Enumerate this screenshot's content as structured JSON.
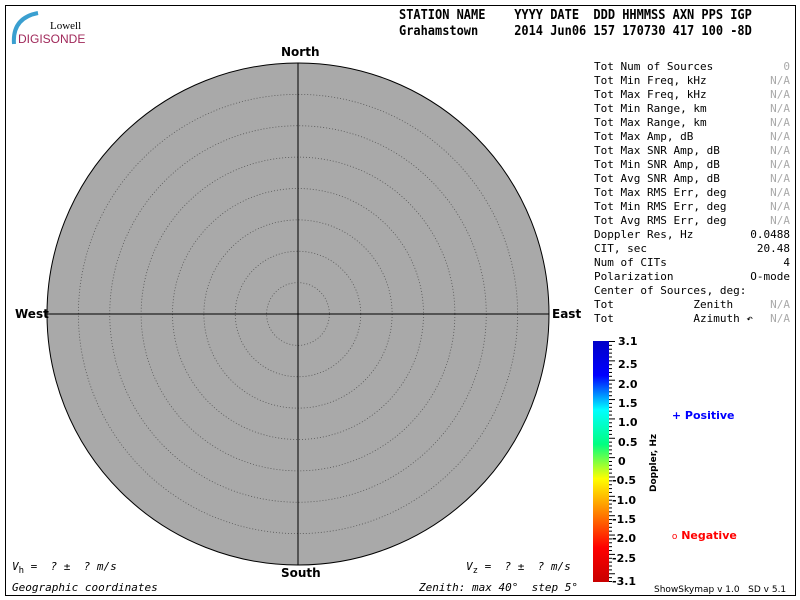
{
  "logo": {
    "line1": "Lowell",
    "line2": "DIGISONDE"
  },
  "header": {
    "labels": "STATION NAME    YYYY DATE  DDD HHMMSS AXN PPS IGP",
    "values": "Grahamstown     2014 Jun06 157 170730 417 100 -8D"
  },
  "directions": {
    "north": "North",
    "south": "South",
    "east": "East",
    "west": "West"
  },
  "plot": {
    "fill": "#a9a9a9",
    "zenith_max_deg": 40,
    "zenith_step_deg": 5
  },
  "stats": [
    {
      "label": "Tot Num of Sources",
      "value": "0",
      "muted": true
    },
    {
      "label": "Tot Min Freq, kHz",
      "value": "N/A",
      "muted": true
    },
    {
      "label": "Tot Max Freq, kHz",
      "value": "N/A",
      "muted": true
    },
    {
      "label": "Tot Min Range, km",
      "value": "N/A",
      "muted": true
    },
    {
      "label": "Tot Max Range, km",
      "value": "N/A",
      "muted": true
    },
    {
      "label": "Tot Max Amp, dB",
      "value": "N/A",
      "muted": true
    },
    {
      "label": "Tot Max SNR Amp, dB",
      "value": "N/A",
      "muted": true
    },
    {
      "label": "Tot Min SNR Amp, dB",
      "value": "N/A",
      "muted": true
    },
    {
      "label": "Tot Avg SNR Amp, dB",
      "value": "N/A",
      "muted": true
    },
    {
      "label": "Tot Max RMS Err, deg",
      "value": "N/A",
      "muted": true
    },
    {
      "label": "Tot Min RMS Err, deg",
      "value": "N/A",
      "muted": true
    },
    {
      "label": "Tot Avg RMS Err, deg",
      "value": "N/A",
      "muted": true
    },
    {
      "label": "Doppler Res, Hz",
      "value": "0.0488",
      "muted": false
    },
    {
      "label": "CIT, sec",
      "value": "20.48",
      "muted": false
    },
    {
      "label": "Num of CITs",
      "value": "4",
      "muted": false
    },
    {
      "label": "Polarization",
      "value": "O-mode",
      "muted": false
    },
    {
      "label": "Center of Sources, deg:",
      "value": "",
      "muted": false
    },
    {
      "label": "Tot            Zenith",
      "value": "N/A",
      "muted": true
    },
    {
      "label": "Tot            Azimuth ↶",
      "value": "N/A",
      "muted": true
    }
  ],
  "colorbar": {
    "title": "Doppler, Hz",
    "ticks": [
      "3.1",
      "2.5",
      "2.0",
      "1.5",
      "1.0",
      "0.5",
      "0",
      "-0.5",
      "-1.0",
      "-1.5",
      "-2.0",
      "-2.5",
      "-3.1"
    ],
    "colors": [
      "#0000c8",
      "#0000ff",
      "#00ffff",
      "#00ff80",
      "#ffff00",
      "#ff8000",
      "#ff0000",
      "#c80000"
    ]
  },
  "legend": {
    "positive": {
      "symbol": "+",
      "label": "Positive",
      "color": "#0000ff"
    },
    "negative": {
      "symbol": "o",
      "label": "Negative",
      "color": "#ff0000"
    }
  },
  "footer": {
    "vh_label": "V",
    "vh_sub": "h",
    "vh_value": " =  ? ±  ? m/s",
    "vz_label": "V",
    "vz_sub": "z",
    "vz_value": " =  ? ±  ? m/s",
    "coords": "Geographic coordinates",
    "zenith": "Zenith: max 40°  step 5°",
    "version": "ShowSkymap v 1.0   SD v 5.1"
  }
}
